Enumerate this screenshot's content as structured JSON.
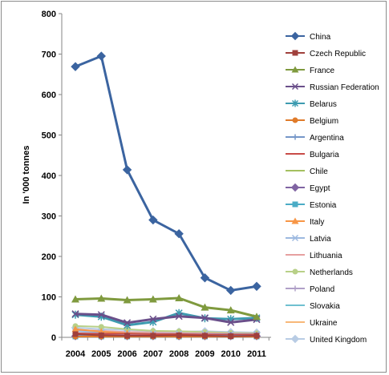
{
  "chart_data": {
    "type": "line",
    "title": "",
    "xlabel": "",
    "ylabel": "In '000 tonnes",
    "ylim": [
      0,
      800
    ],
    "yticks": [
      0,
      100,
      200,
      300,
      400,
      500,
      600,
      700,
      800
    ],
    "grid": false,
    "legend_position": "right",
    "x": [
      "2004",
      "2005",
      "2006",
      "2007",
      "2008",
      "2009",
      "2010",
      "2011"
    ],
    "series": [
      {
        "name": "China",
        "color": "#3b64a0",
        "marker": "diamond",
        "values": [
          669,
          695,
          414,
          290,
          256,
          147,
          116,
          126
        ]
      },
      {
        "name": "Czech Republic",
        "color": "#a0403c",
        "marker": "square",
        "values": [
          8,
          5,
          4,
          4,
          5,
          4,
          3,
          4
        ]
      },
      {
        "name": "France",
        "color": "#7f9a3e",
        "marker": "triangle",
        "values": [
          94,
          96,
          92,
          94,
          97,
          74,
          67,
          51
        ]
      },
      {
        "name": "Russian Federation",
        "color": "#6a4f8a",
        "marker": "x",
        "values": [
          58,
          56,
          36,
          45,
          52,
          48,
          37,
          44
        ]
      },
      {
        "name": "Belarus",
        "color": "#3d9bb0",
        "marker": "star",
        "values": [
          56,
          51,
          30,
          38,
          60,
          47,
          45,
          48
        ]
      },
      {
        "name": "Belgium",
        "color": "#e07b2a",
        "marker": "circle",
        "values": [
          2,
          2,
          2,
          2,
          2,
          2,
          2,
          2
        ]
      },
      {
        "name": "Argentina",
        "color": "#7596c8",
        "marker": "plus",
        "values": [
          5,
          5,
          4,
          4,
          4,
          4,
          4,
          4
        ]
      },
      {
        "name": "Bulgaria",
        "color": "#c84c48",
        "marker": "dash",
        "values": [
          10,
          9,
          9,
          8,
          8,
          7,
          7,
          7
        ]
      },
      {
        "name": "Chile",
        "color": "#a4c060",
        "marker": "dash",
        "values": [
          3,
          3,
          3,
          3,
          3,
          3,
          3,
          3
        ]
      },
      {
        "name": "Egypt",
        "color": "#8064a2",
        "marker": "diamond",
        "values": [
          3,
          3,
          3,
          3,
          3,
          3,
          3,
          3
        ]
      },
      {
        "name": "Estonia",
        "color": "#4bacc6",
        "marker": "square",
        "values": [
          2,
          2,
          2,
          2,
          2,
          2,
          2,
          2
        ]
      },
      {
        "name": "Italy",
        "color": "#f79646",
        "marker": "triangle",
        "values": [
          20,
          14,
          10,
          8,
          6,
          6,
          5,
          6
        ]
      },
      {
        "name": "Latvia",
        "color": "#9db9e0",
        "marker": "x",
        "values": [
          15,
          12,
          10,
          9,
          9,
          8,
          8,
          8
        ]
      },
      {
        "name": "Lithuania",
        "color": "#e6a0a0",
        "marker": "dash",
        "values": [
          18,
          16,
          13,
          12,
          11,
          10,
          9,
          9
        ]
      },
      {
        "name": "Netherlands",
        "color": "#b8d088",
        "marker": "circle",
        "values": [
          28,
          26,
          20,
          16,
          15,
          13,
          11,
          10
        ]
      },
      {
        "name": "Poland",
        "color": "#b0a0c8",
        "marker": "plus",
        "values": [
          6,
          6,
          5,
          5,
          5,
          5,
          5,
          5
        ]
      },
      {
        "name": "Slovakia",
        "color": "#70c0d0",
        "marker": "dash",
        "values": [
          4,
          4,
          4,
          4,
          4,
          4,
          4,
          4
        ]
      },
      {
        "name": "Ukraine",
        "color": "#f8b878",
        "marker": "dash",
        "values": [
          8,
          7,
          6,
          6,
          6,
          5,
          5,
          5
        ]
      },
      {
        "name": "United Kingdom",
        "color": "#b8cce4",
        "marker": "diamond",
        "values": [
          24,
          20,
          18,
          15,
          14,
          15,
          13,
          12
        ]
      }
    ]
  }
}
